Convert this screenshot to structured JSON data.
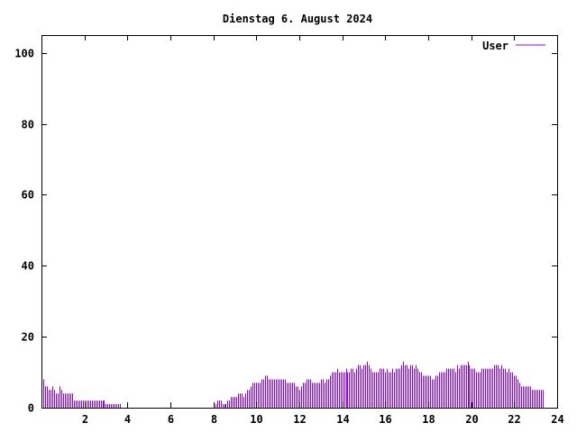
{
  "chart_data": {
    "type": "bar",
    "title": "Dienstag 6. August 2024",
    "xlabel": "",
    "ylabel": "",
    "xlim": [
      0,
      24
    ],
    "ylim": [
      0,
      105
    ],
    "x_ticks": [
      2,
      4,
      6,
      8,
      10,
      12,
      14,
      16,
      18,
      20,
      22,
      24
    ],
    "y_ticks": [
      0,
      20,
      40,
      60,
      80,
      100
    ],
    "grid": false,
    "legend_position": "top-right",
    "series": [
      {
        "name": "User",
        "color": "#9400d3",
        "values_interval_hours": 0.0833,
        "values": [
          7,
          8,
          6,
          6,
          5,
          5,
          6,
          5,
          4,
          4,
          6,
          5,
          4,
          4,
          4,
          4,
          4,
          4,
          2,
          2,
          2,
          2,
          2,
          2,
          2,
          2,
          2,
          2,
          2,
          2,
          2,
          2,
          2,
          2,
          2,
          2,
          1,
          1,
          1,
          1,
          1,
          1,
          1,
          1,
          1,
          0,
          0,
          0,
          0,
          0,
          0,
          0,
          0,
          0,
          0,
          0,
          0,
          0,
          0,
          0,
          0,
          0,
          0,
          0,
          0,
          0,
          0,
          0,
          0,
          0,
          0,
          0,
          0,
          0,
          0,
          0,
          0,
          0,
          0,
          0,
          0,
          0,
          0,
          0,
          0,
          0,
          0,
          0,
          0,
          0,
          0,
          0,
          0,
          0,
          0,
          0,
          1,
          1,
          2,
          2,
          2,
          1,
          1,
          1,
          2,
          2,
          3,
          3,
          3,
          3,
          4,
          4,
          4,
          3,
          4,
          5,
          5,
          6,
          7,
          7,
          7,
          7,
          7,
          8,
          8,
          9,
          9,
          8,
          8,
          8,
          8,
          8,
          8,
          8,
          8,
          8,
          8,
          7,
          7,
          7,
          7,
          7,
          6,
          6,
          5,
          6,
          7,
          7,
          8,
          8,
          8,
          7,
          7,
          7,
          7,
          7,
          8,
          8,
          7,
          8,
          8,
          9,
          10,
          10,
          10,
          11,
          10,
          10,
          10,
          10,
          11,
          10,
          10,
          11,
          11,
          10,
          11,
          12,
          12,
          11,
          12,
          12,
          13,
          12,
          11,
          10,
          10,
          10,
          10,
          11,
          11,
          11,
          10,
          11,
          10,
          10,
          11,
          10,
          11,
          11,
          11,
          12,
          13,
          12,
          12,
          11,
          12,
          12,
          11,
          12,
          11,
          10,
          10,
          9,
          9,
          9,
          9,
          9,
          8,
          8,
          9,
          9,
          10,
          10,
          10,
          10,
          11,
          11,
          11,
          11,
          11,
          10,
          12,
          11,
          12,
          12,
          12,
          12,
          13,
          12,
          11,
          11,
          11,
          10,
          10,
          10,
          11,
          11,
          11,
          11,
          11,
          11,
          11,
          12,
          12,
          12,
          11,
          12,
          11,
          11,
          10,
          11,
          10,
          10,
          9,
          9,
          8,
          7,
          6,
          6,
          6,
          6,
          6,
          6,
          5,
          5,
          5,
          5,
          5,
          5,
          5
        ]
      }
    ]
  }
}
